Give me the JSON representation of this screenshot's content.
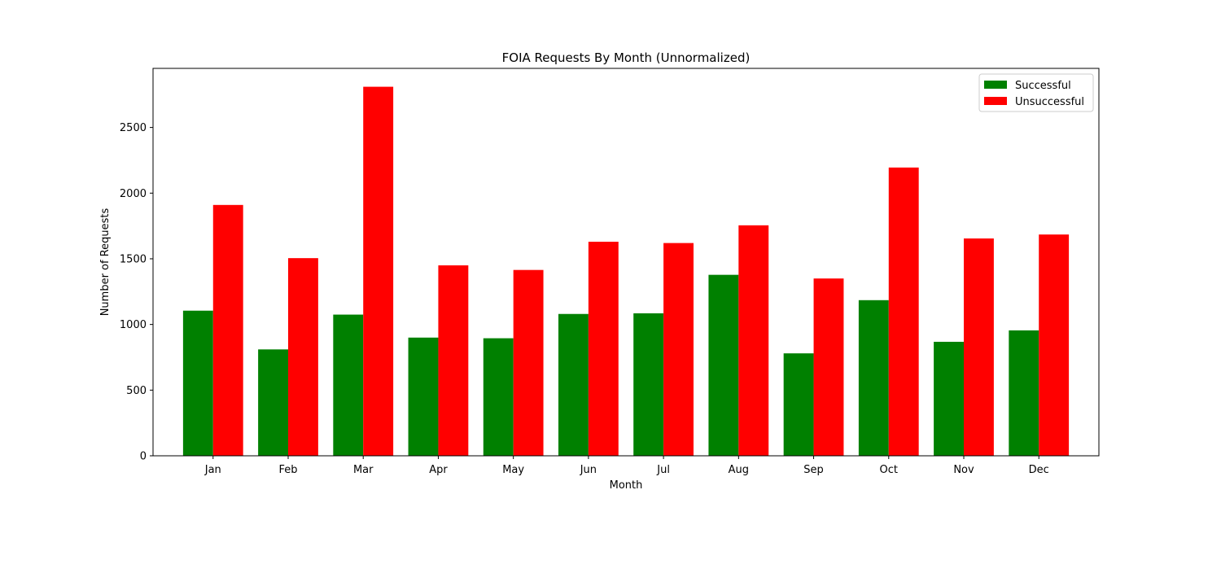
{
  "chart_data": {
    "type": "bar",
    "title": "FOIA Requests By Month (Unnormalized)",
    "xlabel": "Month",
    "ylabel": "Number of Requests",
    "categories": [
      "Jan",
      "Feb",
      "Mar",
      "Apr",
      "May",
      "Jun",
      "Jul",
      "Aug",
      "Sep",
      "Oct",
      "Nov",
      "Dec"
    ],
    "series": [
      {
        "name": "Successful",
        "color": "#008000",
        "values": [
          1105,
          810,
          1075,
          900,
          895,
          1080,
          1085,
          1378,
          780,
          1185,
          868,
          955
        ]
      },
      {
        "name": "Unsuccessful",
        "color": "#ff0000",
        "values": [
          1910,
          1505,
          2810,
          1450,
          1415,
          1630,
          1620,
          1755,
          1350,
          2195,
          1655,
          1685
        ]
      }
    ],
    "ylim": [
      0,
      2950
    ],
    "yticks": [
      0,
      500,
      1000,
      1500,
      2000,
      2500
    ],
    "grid": false,
    "legend_position": "top-right"
  }
}
